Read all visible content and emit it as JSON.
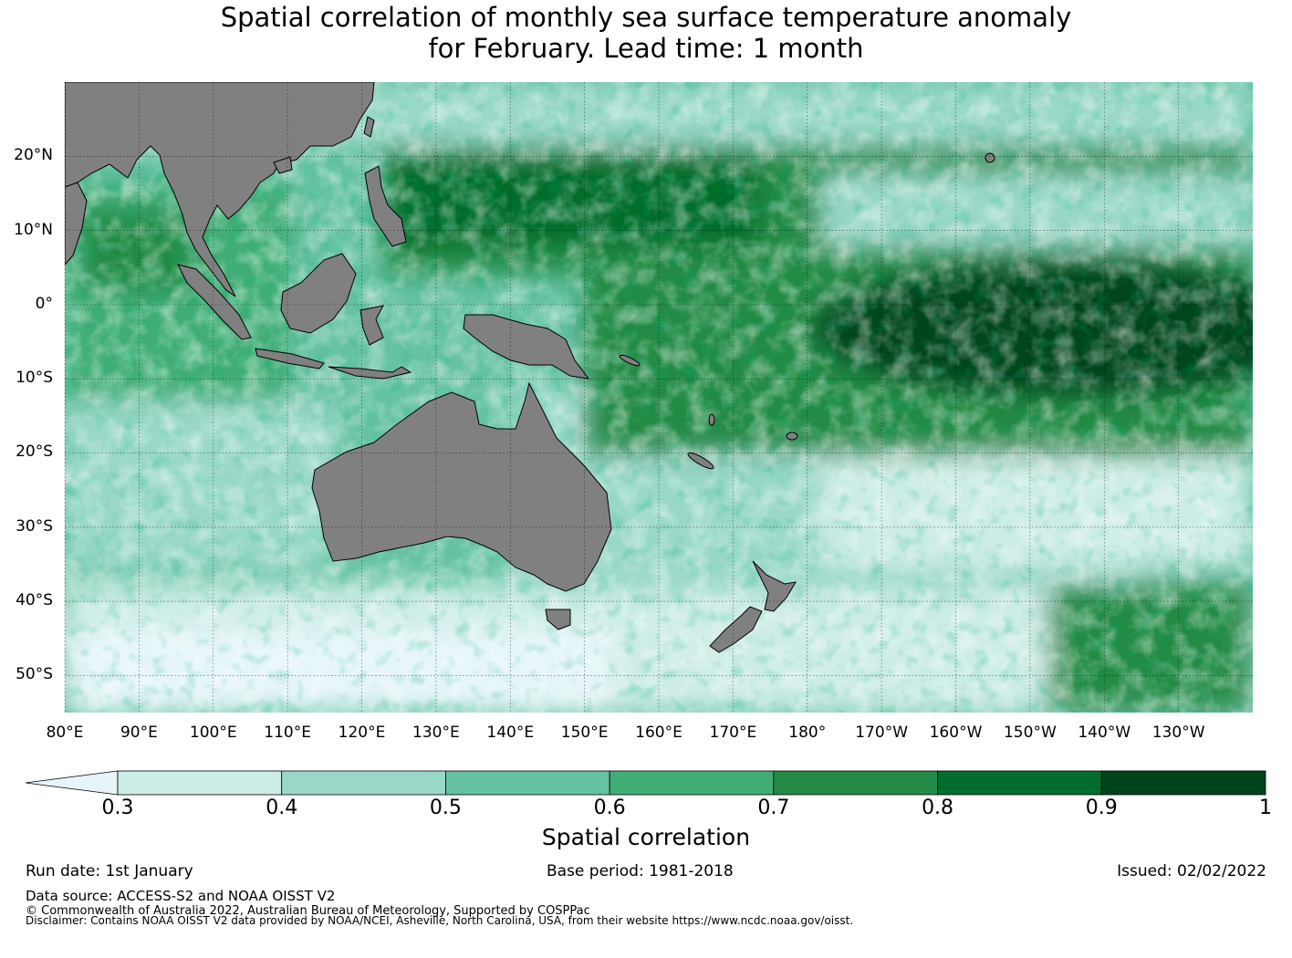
{
  "title": {
    "line1": "Spatial correlation of monthly sea surface temperature anomaly",
    "line2": "for February. Lead time: 1 month"
  },
  "map": {
    "region": "Indo-Pacific",
    "lon_range": [
      80,
      240
    ],
    "lat_range": [
      -55,
      30
    ],
    "lat_labels": [
      "20°N",
      "10°N",
      "0°",
      "10°S",
      "20°S",
      "30°S",
      "40°S",
      "50°S"
    ],
    "lat_values": [
      20,
      10,
      0,
      -10,
      -20,
      -30,
      -40,
      -50
    ],
    "lon_labels": [
      "80°E",
      "90°E",
      "100°E",
      "110°E",
      "120°E",
      "130°E",
      "140°E",
      "150°E",
      "160°E",
      "170°E",
      "180°",
      "170°W",
      "160°W",
      "150°W",
      "140°W",
      "130°W"
    ],
    "lon_values": [
      80,
      90,
      100,
      110,
      120,
      130,
      140,
      150,
      160,
      170,
      180,
      190,
      200,
      210,
      220,
      230
    ],
    "land_color": "#808080",
    "gridlines": true
  },
  "colorbar": {
    "label": "Spatial correlation",
    "ticks": [
      "0.3",
      "0.4",
      "0.5",
      "0.6",
      "0.7",
      "0.8",
      "0.9",
      "1"
    ],
    "tick_values": [
      0.3,
      0.4,
      0.5,
      0.6,
      0.7,
      0.8,
      0.9,
      1.0
    ],
    "under_color": "#e5f5f9",
    "colors": [
      "#ccece6",
      "#99d8c9",
      "#66c2a4",
      "#41ae76",
      "#238b45",
      "#006d2c",
      "#00441b"
    ]
  },
  "footer": {
    "run_date": "Run date: 1st January",
    "base_period": "Base period: 1981-2018",
    "issued": "Issued: 02/02/2022",
    "data_source": "Data source: ACCESS-S2 and NOAA OISST V2",
    "copyright": "© Commonwealth of Australia 2022, Australian Bureau of Meteorology, Supported by COSPPac",
    "disclaimer": "Disclaimer: Contains NOAA OISST V2 data provided by NOAA/NCEI, Asheville, North Carolina, USA, from their website https://www.ncdc.noaa.gov/oisst."
  }
}
